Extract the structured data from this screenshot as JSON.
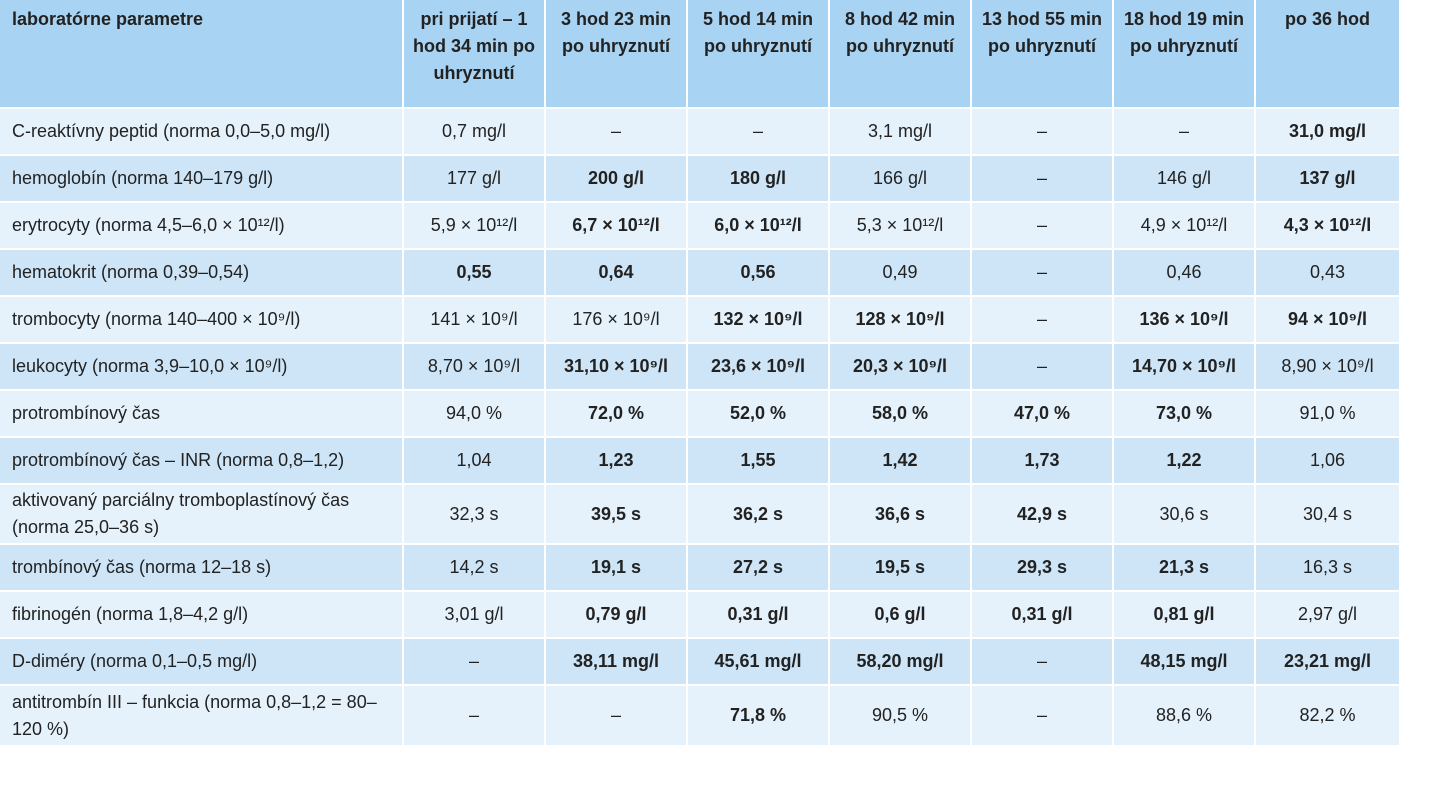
{
  "table": {
    "headers": [
      "laboratórne parametre",
      "pri prijatí – 1 hod 34 min po uhryznutí",
      "3 hod 23 min po uhryznutí",
      "5 hod 14 min po uhryznutí",
      "8 hod 42 min po uhryznutí",
      "13 hod 55 min po uhryznutí",
      "18 hod 19 min po uhryznutí",
      "po 36 hod"
    ],
    "rows": [
      {
        "label": "C-reaktívny peptid (norma 0,0–5,0 mg/l)",
        "cells": [
          {
            "v": "0,7 mg/l",
            "b": false
          },
          {
            "v": "–",
            "b": false
          },
          {
            "v": "–",
            "b": false
          },
          {
            "v": "3,1 mg/l",
            "b": false
          },
          {
            "v": "–",
            "b": false
          },
          {
            "v": "–",
            "b": false
          },
          {
            "v": "31,0 mg/l",
            "b": true
          }
        ]
      },
      {
        "label": "hemoglobín (norma 140–179 g/l)",
        "cells": [
          {
            "v": "177 g/l",
            "b": false
          },
          {
            "v": "200 g/l",
            "b": true
          },
          {
            "v": "180 g/l",
            "b": true
          },
          {
            "v": "166 g/l",
            "b": false
          },
          {
            "v": "–",
            "b": false
          },
          {
            "v": "146 g/l",
            "b": false
          },
          {
            "v": "137 g/l",
            "b": true
          }
        ]
      },
      {
        "label": "erytrocyty (norma 4,5–6,0 × 10¹²/l)",
        "cells": [
          {
            "v": "5,9 × 10¹²/l",
            "b": false
          },
          {
            "v": "6,7 × 10¹²/l",
            "b": true
          },
          {
            "v": "6,0 × 10¹²/l",
            "b": true
          },
          {
            "v": "5,3 × 10¹²/l",
            "b": false
          },
          {
            "v": "–",
            "b": false
          },
          {
            "v": "4,9 × 10¹²/l",
            "b": false
          },
          {
            "v": "4,3 × 10¹²/l",
            "b": true
          }
        ]
      },
      {
        "label": "hematokrit (norma 0,39–0,54)",
        "cells": [
          {
            "v": "0,55",
            "b": true
          },
          {
            "v": "0,64",
            "b": true
          },
          {
            "v": "0,56",
            "b": true
          },
          {
            "v": "0,49",
            "b": false
          },
          {
            "v": "–",
            "b": false
          },
          {
            "v": "0,46",
            "b": false
          },
          {
            "v": "0,43",
            "b": false
          }
        ]
      },
      {
        "label": "trombocyty (norma 140–400 × 10⁹/l)",
        "cells": [
          {
            "v": "141 × 10⁹/l",
            "b": false
          },
          {
            "v": "176 × 10⁹/l",
            "b": false
          },
          {
            "v": "132 × 10⁹/l",
            "b": true
          },
          {
            "v": "128 × 10⁹/l",
            "b": true
          },
          {
            "v": "–",
            "b": false
          },
          {
            "v": "136 × 10⁹/l",
            "b": true
          },
          {
            "v": "94 × 10⁹/l",
            "b": true
          }
        ]
      },
      {
        "label": "leukocyty (norma 3,9–10,0 × 10⁹/l)",
        "cells": [
          {
            "v": "8,70 × 10⁹/l",
            "b": false
          },
          {
            "v": "31,10 × 10⁹/l",
            "b": true
          },
          {
            "v": "23,6 × 10⁹/l",
            "b": true
          },
          {
            "v": "20,3 × 10⁹/l",
            "b": true
          },
          {
            "v": "–",
            "b": false
          },
          {
            "v": "14,70 × 10⁹/l",
            "b": true
          },
          {
            "v": "8,90 × 10⁹/l",
            "b": false
          }
        ]
      },
      {
        "label": "protrombínový čas",
        "cells": [
          {
            "v": "94,0 %",
            "b": false
          },
          {
            "v": "72,0 %",
            "b": true
          },
          {
            "v": "52,0 %",
            "b": true
          },
          {
            "v": "58,0 %",
            "b": true
          },
          {
            "v": "47,0 %",
            "b": true
          },
          {
            "v": "73,0 %",
            "b": true
          },
          {
            "v": "91,0 %",
            "b": false
          }
        ]
      },
      {
        "label": "protrombínový čas – INR (norma 0,8–1,2)",
        "cells": [
          {
            "v": "1,04",
            "b": false
          },
          {
            "v": "1,23",
            "b": true
          },
          {
            "v": "1,55",
            "b": true
          },
          {
            "v": "1,42",
            "b": true
          },
          {
            "v": "1,73",
            "b": true
          },
          {
            "v": "1,22",
            "b": true
          },
          {
            "v": "1,06",
            "b": false
          }
        ]
      },
      {
        "label": "aktivovaný parciálny tromboplastínový čas (norma 25,0–36 s)",
        "tall": true,
        "cells": [
          {
            "v": "32,3 s",
            "b": false
          },
          {
            "v": "39,5 s",
            "b": true
          },
          {
            "v": "36,2 s",
            "b": true
          },
          {
            "v": "36,6 s",
            "b": true
          },
          {
            "v": "42,9 s",
            "b": true
          },
          {
            "v": "30,6 s",
            "b": false
          },
          {
            "v": "30,4 s",
            "b": false
          }
        ]
      },
      {
        "label": "trombínový čas (norma 12–18 s)",
        "cells": [
          {
            "v": "14,2 s",
            "b": false
          },
          {
            "v": "19,1 s",
            "b": true
          },
          {
            "v": "27,2 s",
            "b": true
          },
          {
            "v": "19,5 s",
            "b": true
          },
          {
            "v": "29,3 s",
            "b": true
          },
          {
            "v": "21,3 s",
            "b": true
          },
          {
            "v": "16,3 s",
            "b": false
          }
        ]
      },
      {
        "label": "fibrinogén (norma 1,8–4,2 g/l)",
        "cells": [
          {
            "v": "3,01 g/l",
            "b": false
          },
          {
            "v": "0,79 g/l",
            "b": true
          },
          {
            "v": "0,31 g/l",
            "b": true
          },
          {
            "v": "0,6 g/l",
            "b": true
          },
          {
            "v": "0,31 g/l",
            "b": true
          },
          {
            "v": "0,81 g/l",
            "b": true
          },
          {
            "v": "2,97 g/l",
            "b": false
          }
        ]
      },
      {
        "label": "D-diméry (norma 0,1–0,5 mg/l)",
        "cells": [
          {
            "v": "–",
            "b": false
          },
          {
            "v": "38,11 mg/l",
            "b": true
          },
          {
            "v": "45,61 mg/l",
            "b": true
          },
          {
            "v": "58,20 mg/l",
            "b": true
          },
          {
            "v": "–",
            "b": false
          },
          {
            "v": "48,15 mg/l",
            "b": true
          },
          {
            "v": "23,21 mg/l",
            "b": true
          }
        ]
      },
      {
        "label": "antitrombín III – funkcia (norma 0,8–1,2 = 80–120 %)",
        "tall": true,
        "cells": [
          {
            "v": "–",
            "b": false
          },
          {
            "v": "–",
            "b": false
          },
          {
            "v": "71,8 %",
            "b": true
          },
          {
            "v": "90,5 %",
            "b": false
          },
          {
            "v": "–",
            "b": false
          },
          {
            "v": "88,6 %",
            "b": false
          },
          {
            "v": "82,2 %",
            "b": false
          }
        ]
      }
    ]
  }
}
